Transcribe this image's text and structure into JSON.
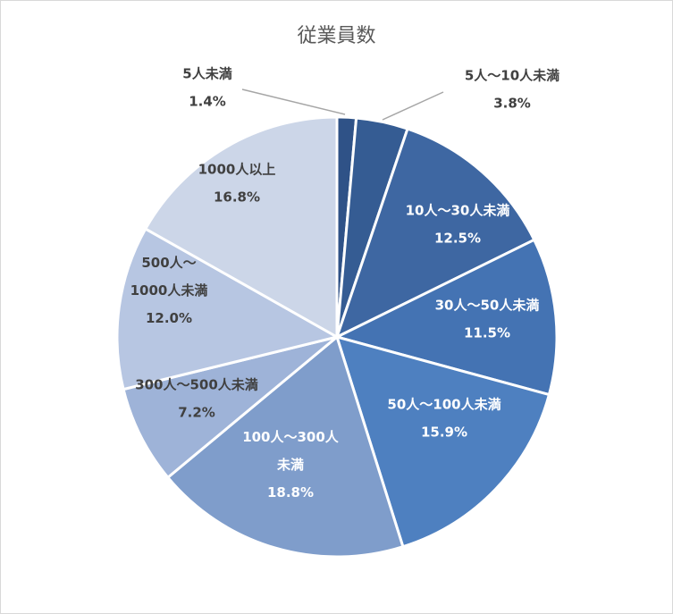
{
  "chart_data": {
    "type": "pie",
    "title": "従業員数",
    "start_angle_deg": 0,
    "direction": "clockwise",
    "slices": [
      {
        "label": "5人未満",
        "value": 1.4,
        "display": "1.4%",
        "color": "#2f5287",
        "label_color": "#404040"
      },
      {
        "label": "5人～10人未満",
        "value": 3.8,
        "display": "3.8%",
        "color": "#355c93",
        "label_color": "#404040"
      },
      {
        "label": "10人～30人未満",
        "value": 12.5,
        "display": "12.5%",
        "color": "#3e67a2",
        "label_color": "#ffffff"
      },
      {
        "label": "30人～50人未満",
        "value": 11.5,
        "display": "11.5%",
        "color": "#4473b3",
        "label_color": "#ffffff"
      },
      {
        "label": "50人～100人未満",
        "value": 15.9,
        "display": "15.9%",
        "color": "#4e80c0",
        "label_color": "#ffffff"
      },
      {
        "label": "100人～300人未満",
        "value": 18.8,
        "display": "18.8%",
        "color": "#7f9dcb",
        "label_color": "#ffffff",
        "label_lines": [
          "100人～300人",
          "未満"
        ]
      },
      {
        "label": "300人～500人未満",
        "value": 7.2,
        "display": "7.2%",
        "color": "#9eb3d8",
        "label_color": "#404040"
      },
      {
        "label": "500人～1000人未満",
        "value": 12.0,
        "display": "12.0%",
        "color": "#b7c6e2",
        "label_color": "#404040",
        "label_lines": [
          "500人～",
          "1000人未満"
        ]
      },
      {
        "label": "1000人以上",
        "value": 16.8,
        "display": "16.8%",
        "color": "#ccd6e8",
        "label_color": "#404040"
      }
    ]
  }
}
